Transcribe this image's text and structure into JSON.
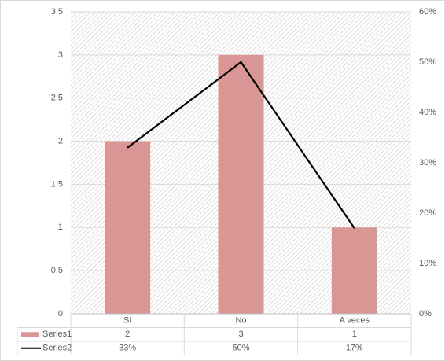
{
  "chart_data": {
    "type": "bar",
    "categories": [
      "Sí",
      "No",
      "A veces"
    ],
    "series": [
      {
        "name": "Series1",
        "type": "bar",
        "color": "#d99694",
        "values": [
          2,
          3,
          1
        ]
      },
      {
        "name": "Series2",
        "type": "line",
        "axis": "y2",
        "color": "#000000",
        "values": [
          33,
          50,
          17
        ],
        "value_labels": [
          "33%",
          "50%",
          "17%"
        ]
      }
    ],
    "ylim": [
      0,
      3.5
    ],
    "yticks": [
      0,
      0.5,
      1,
      1.5,
      2,
      2.5,
      3,
      3.5
    ],
    "y2lim": [
      0,
      60
    ],
    "y2ticks": [
      {
        "value": 0,
        "label": "0%"
      },
      {
        "value": 10,
        "label": "10%"
      },
      {
        "value": 20,
        "label": "20%"
      },
      {
        "value": 30,
        "label": "30%"
      },
      {
        "value": 40,
        "label": "40%"
      },
      {
        "value": 50,
        "label": "50%"
      },
      {
        "value": 60,
        "label": "60%"
      }
    ],
    "grid": true,
    "data_table": true
  }
}
